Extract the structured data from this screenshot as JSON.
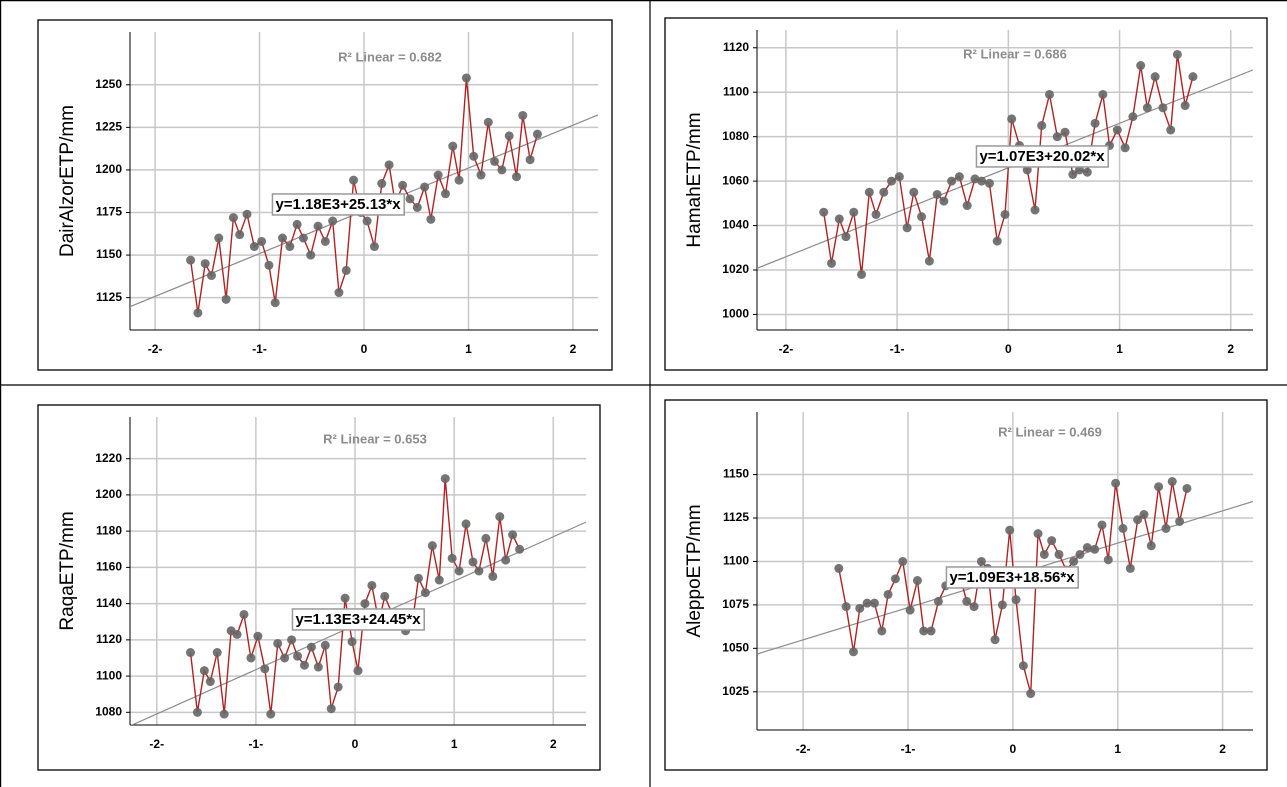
{
  "chart_data": [
    {
      "type": "line",
      "y_label": "DairAlzorETP/mm",
      "annotation": "R² Linear = 0.682",
      "x": [
        -1.66,
        -1.59,
        -1.52,
        -1.46,
        -1.39,
        -1.32,
        -1.25,
        -1.19,
        -1.12,
        -1.05,
        -0.98,
        -0.91,
        -0.85,
        -0.78,
        -0.71,
        -0.64,
        -0.58,
        -0.51,
        -0.44,
        -0.37,
        -0.3,
        -0.24,
        -0.17,
        -0.1,
        -0.03,
        0.03,
        0.1,
        0.17,
        0.24,
        0.3,
        0.37,
        0.44,
        0.51,
        0.58,
        0.64,
        0.71,
        0.78,
        0.85,
        0.91,
        0.98,
        1.05,
        1.12,
        1.19,
        1.25,
        1.32,
        1.39,
        1.46,
        1.52,
        1.59,
        1.66
      ],
      "values": [
        1147,
        1116,
        1145,
        1138,
        1160,
        1124,
        1172,
        1162,
        1174,
        1155,
        1158,
        1144,
        1122,
        1160,
        1155,
        1168,
        1160,
        1150,
        1167,
        1158,
        1170,
        1128,
        1141,
        1194,
        1175,
        1170,
        1155,
        1192,
        1203,
        1180,
        1191,
        1183,
        1178,
        1190,
        1171,
        1197,
        1186,
        1214,
        1194,
        1254,
        1208,
        1197,
        1228,
        1205,
        1200,
        1220,
        1196,
        1232,
        1206,
        1221
      ],
      "color": "#b22222",
      "marker_color": "#666666",
      "fit": {
        "intercept": 1176,
        "slope": 25.13,
        "label": "y=1.18E3+25.13*x"
      },
      "fit_color": "#8c8c8c",
      "xlim": [
        -2.24,
        2.24
      ],
      "ylim": [
        1106,
        1281
      ],
      "xticks": [
        {
          "value": -2,
          "label": "-2-"
        },
        {
          "value": -1,
          "label": "-1-"
        },
        0,
        1,
        2
      ],
      "yticks": [
        1125,
        1150,
        1175,
        1200,
        1225,
        1250
      ],
      "grid": true
    },
    {
      "type": "line",
      "y_label": "HamahETP/mm",
      "annotation": "R² Linear = 0.686",
      "x": [
        -1.66,
        -1.59,
        -1.52,
        -1.46,
        -1.39,
        -1.32,
        -1.25,
        -1.19,
        -1.12,
        -1.05,
        -0.98,
        -0.91,
        -0.85,
        -0.78,
        -0.71,
        -0.64,
        -0.58,
        -0.51,
        -0.44,
        -0.37,
        -0.3,
        -0.24,
        -0.17,
        -0.1,
        -0.03,
        0.03,
        0.1,
        0.17,
        0.24,
        0.3,
        0.37,
        0.44,
        0.51,
        0.58,
        0.64,
        0.71,
        0.78,
        0.85,
        0.91,
        0.98,
        1.05,
        1.12,
        1.19,
        1.25,
        1.32,
        1.39,
        1.46,
        1.52,
        1.59,
        1.66
      ],
      "values": [
        1046,
        1023,
        1043,
        1035,
        1046,
        1018,
        1055,
        1045,
        1055,
        1060,
        1062,
        1039,
        1055,
        1044,
        1024,
        1054,
        1051,
        1060,
        1062,
        1049,
        1061,
        1060,
        1059,
        1033,
        1045,
        1088,
        1076,
        1065,
        1047,
        1085,
        1099,
        1080,
        1082,
        1063,
        1065,
        1064,
        1086,
        1099,
        1076,
        1083,
        1075,
        1089,
        1112,
        1093,
        1107,
        1093,
        1083,
        1117,
        1094,
        1107
      ],
      "color": "#b22222",
      "marker_color": "#666666",
      "fit": {
        "intercept": 1066,
        "slope": 20.02,
        "label": "y=1.07E3+20.02*x"
      },
      "fit_color": "#8c8c8c",
      "xlim": [
        -2.26,
        2.2
      ],
      "ylim": [
        993,
        1128
      ],
      "xticks": [
        {
          "value": -2,
          "label": "-2-"
        },
        {
          "value": -1,
          "label": "-1-"
        },
        0,
        1,
        2
      ],
      "yticks": [
        1000,
        1020,
        1040,
        1060,
        1080,
        1100,
        1120
      ],
      "grid": true
    },
    {
      "type": "line",
      "y_label": "RaqaETP/mm",
      "annotation": "R² Linear = 0.653",
      "x": [
        -1.66,
        -1.59,
        -1.52,
        -1.46,
        -1.39,
        -1.32,
        -1.25,
        -1.19,
        -1.12,
        -1.05,
        -0.98,
        -0.91,
        -0.85,
        -0.78,
        -0.71,
        -0.64,
        -0.58,
        -0.51,
        -0.44,
        -0.37,
        -0.3,
        -0.24,
        -0.17,
        -0.1,
        -0.03,
        0.03,
        0.1,
        0.17,
        0.24,
        0.3,
        0.37,
        0.44,
        0.51,
        0.58,
        0.64,
        0.71,
        0.78,
        0.85,
        0.91,
        0.98,
        1.05,
        1.12,
        1.19,
        1.25,
        1.32,
        1.39,
        1.46,
        1.52,
        1.59,
        1.66
      ],
      "values": [
        1113,
        1080,
        1103,
        1097,
        1113,
        1079,
        1125,
        1123,
        1134,
        1110,
        1122,
        1104,
        1079,
        1118,
        1110,
        1120,
        1111,
        1106,
        1116,
        1105,
        1117,
        1082,
        1094,
        1143,
        1119,
        1103,
        1140,
        1150,
        1130,
        1144,
        1135,
        1128,
        1125,
        1130,
        1154,
        1146,
        1172,
        1153,
        1209,
        1165,
        1158,
        1184,
        1163,
        1158,
        1176,
        1155,
        1188,
        1164,
        1178,
        1170
      ],
      "color": "#b22222",
      "marker_color": "#666666",
      "fit": {
        "intercept": 1128,
        "slope": 24.45,
        "label": "y=1.13E3+24.45*x"
      },
      "fit_color": "#8c8c8c",
      "xlim": [
        -2.27,
        2.33
      ],
      "ylim": [
        1073,
        1243
      ],
      "xticks": [
        {
          "value": -2,
          "label": "-2-"
        },
        {
          "value": -1,
          "label": "-1-"
        },
        0,
        1,
        2
      ],
      "yticks": [
        1080,
        1100,
        1120,
        1140,
        1160,
        1180,
        1200,
        1220
      ],
      "grid": true
    },
    {
      "type": "line",
      "y_label": "AleppoETP/mm",
      "annotation": "R² Linear = 0.469",
      "x": [
        -1.66,
        -1.59,
        -1.52,
        -1.46,
        -1.39,
        -1.32,
        -1.25,
        -1.19,
        -1.12,
        -1.05,
        -0.98,
        -0.91,
        -0.85,
        -0.78,
        -0.71,
        -0.64,
        -0.58,
        -0.51,
        -0.44,
        -0.37,
        -0.3,
        -0.24,
        -0.17,
        -0.1,
        -0.03,
        0.03,
        0.1,
        0.17,
        0.24,
        0.3,
        0.37,
        0.44,
        0.51,
        0.58,
        0.64,
        0.71,
        0.78,
        0.85,
        0.91,
        0.98,
        1.05,
        1.12,
        1.19,
        1.25,
        1.32,
        1.39,
        1.46,
        1.52,
        1.59,
        1.66
      ],
      "values": [
        1096,
        1074,
        1048,
        1073,
        1076,
        1076,
        1060,
        1081,
        1090,
        1100,
        1072,
        1089,
        1060,
        1060,
        1077,
        1086,
        1088,
        1093,
        1077,
        1074,
        1100,
        1096,
        1055,
        1075,
        1118,
        1078,
        1040,
        1024,
        1116,
        1104,
        1112,
        1104,
        1095,
        1100,
        1104,
        1108,
        1107,
        1121,
        1101,
        1145,
        1119,
        1096,
        1124,
        1127,
        1109,
        1143,
        1119,
        1146,
        1123,
        1142
      ],
      "color": "#b22222",
      "marker_color": "#666666",
      "fit": {
        "intercept": 1092,
        "slope": 18.56,
        "label": "y=1.09E3+18.56*x"
      },
      "fit_color": "#8c8c8c",
      "xlim": [
        -2.44,
        2.29
      ],
      "ylim": [
        1003,
        1186
      ],
      "xticks": [
        {
          "value": -2,
          "label": "-2-"
        },
        {
          "value": -1,
          "label": "-1-"
        },
        0,
        1,
        2
      ],
      "yticks": [
        1025,
        1050,
        1075,
        1100,
        1125,
        1150
      ],
      "grid": true
    }
  ]
}
